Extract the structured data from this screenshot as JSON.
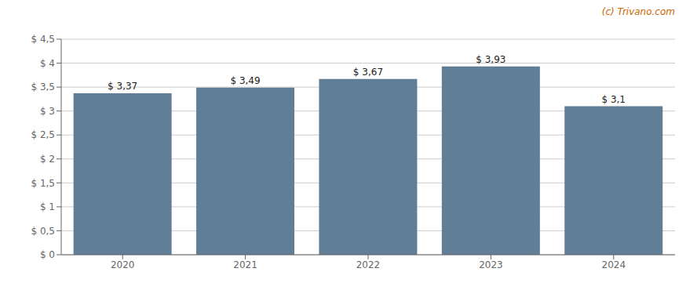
{
  "chart_data": {
    "type": "bar",
    "categories": [
      "2020",
      "2021",
      "2022",
      "2023",
      "2024"
    ],
    "values": [
      3.37,
      3.49,
      3.67,
      3.93,
      3.1
    ],
    "value_labels": [
      "$ 3,37",
      "$ 3,49",
      "$ 3,67",
      "$ 3,93",
      "$ 3,1"
    ],
    "color": "#607f96",
    "ylim": [
      0,
      4.5
    ],
    "yticks": [
      {
        "value": 0,
        "label": "$ 0"
      },
      {
        "value": 0.5,
        "label": "$ 0,5"
      },
      {
        "value": 1.0,
        "label": "$ 1"
      },
      {
        "value": 1.5,
        "label": "$ 1,5"
      },
      {
        "value": 2.0,
        "label": "$ 2"
      },
      {
        "value": 2.5,
        "label": "$ 2,5"
      },
      {
        "value": 3.0,
        "label": "$ 3"
      },
      {
        "value": 3.5,
        "label": "$ 3,5"
      },
      {
        "value": 4.0,
        "label": "$ 4"
      },
      {
        "value": 4.5,
        "label": "$ 4,5"
      }
    ],
    "grid": true,
    "annotations": [
      {
        "text": "(c) Trivano.com",
        "color": "#cc6600"
      }
    ]
  }
}
